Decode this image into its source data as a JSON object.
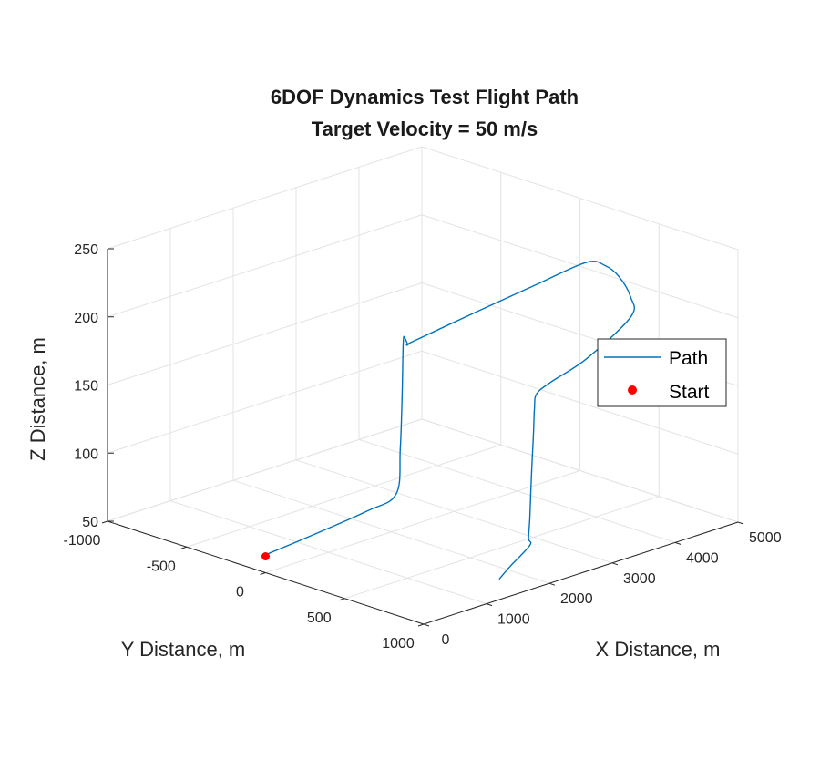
{
  "chart_data": {
    "type": "line3d",
    "title": [
      "6DOF Dynamics Test Flight Path",
      "Target Velocity = 50 m/s"
    ],
    "xlabel": "X Distance, m",
    "ylabel": "Y Distance, m",
    "zlabel": "Z Distance, m",
    "xlim": [
      0,
      5000
    ],
    "ylim": [
      -1000,
      1000
    ],
    "zlim": [
      50,
      250
    ],
    "xticks": [
      0,
      1000,
      2000,
      3000,
      4000,
      5000
    ],
    "yticks": [
      -1000,
      -500,
      0,
      500,
      1000
    ],
    "zticks": [
      50,
      100,
      150,
      200,
      250
    ],
    "grid": true,
    "legend": {
      "location": "east",
      "entries": [
        "Path",
        "Start"
      ]
    },
    "colors": {
      "path": "#0072BD",
      "start": "#FF0000",
      "grid": "#e3e3e3",
      "axis": "#262626"
    },
    "series": [
      {
        "name": "Path",
        "x": [
          0,
          20,
          50,
          400,
          1300,
          1700,
          1760,
          1790,
          1810,
          1840,
          1890,
          1950,
          2800,
          3700,
          4350,
          4550,
          4620,
          4550,
          4300,
          3300,
          2500,
          2200,
          2160,
          2140,
          2110,
          2090,
          2070,
          2040,
          1500,
          1200
        ],
        "y": [
          0,
          10,
          30,
          60,
          120,
          150,
          152,
          152,
          151,
          150,
          150,
          152,
          200,
          250,
          300,
          340,
          400,
          500,
          600,
          720,
          810,
          840,
          842,
          843,
          842,
          840,
          840,
          860,
          950,
          1000
        ],
        "z": [
          62,
          64,
          66,
          70,
          80,
          88,
          120,
          160,
          198,
          200,
          195,
          196,
          206,
          216,
          224,
          220,
          213,
          203,
          196,
          185,
          183,
          180,
          170,
          150,
          120,
          90,
          76,
          72,
          68,
          65
        ]
      },
      {
        "name": "Start",
        "x": [
          0
        ],
        "y": [
          0
        ],
        "z": [
          62
        ]
      }
    ]
  }
}
